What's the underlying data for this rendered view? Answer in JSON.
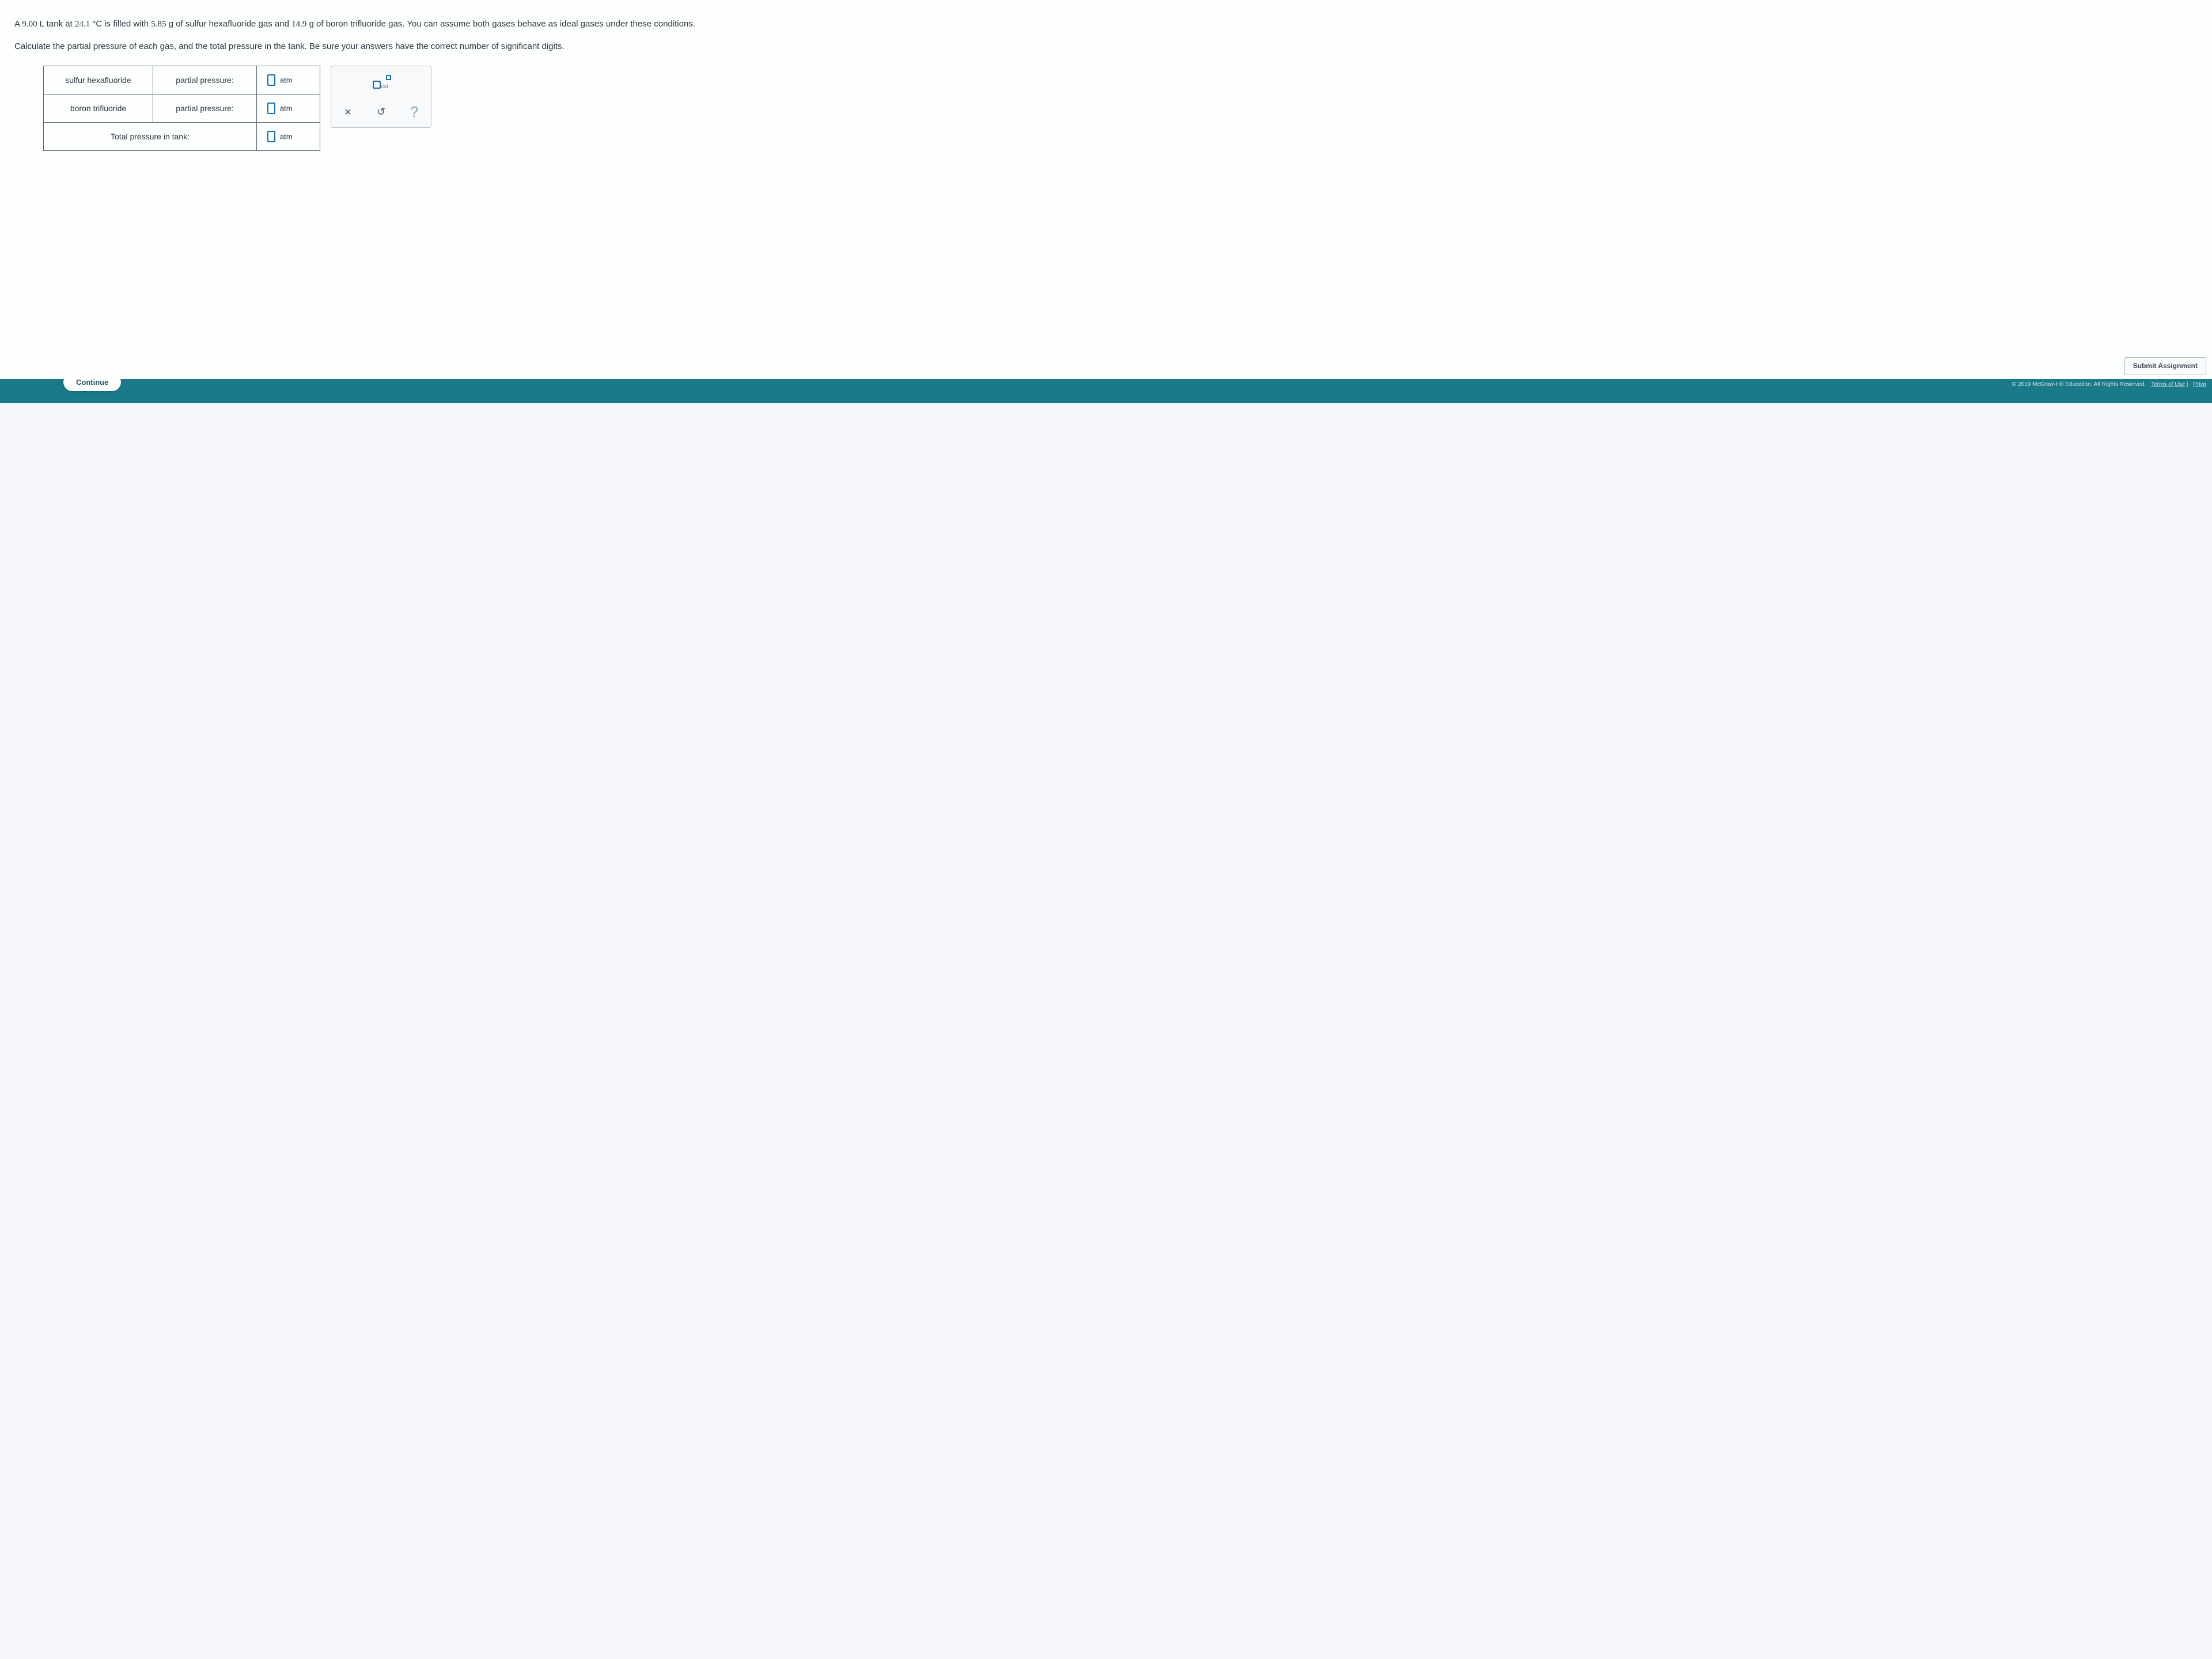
{
  "problem": {
    "text_parts": [
      "A ",
      "9.00",
      " L tank at ",
      "24.1",
      " °C is filled with ",
      "5.85",
      " g of sulfur hexafluoride gas and ",
      "14.9",
      " g of boron trifluoride gas. You can assume both gases behave as ideal gases under these conditions."
    ],
    "instruction": "Calculate the partial pressure of each gas, and the total pressure in the tank. Be sure your answers have the correct number of significant digits."
  },
  "table": {
    "rows": [
      {
        "gas": "sulfur hexafluoride",
        "label": "partial pressure:",
        "unit": "atm"
      },
      {
        "gas": "boron trifluoride",
        "label": "partial pressure:",
        "unit": "atm"
      }
    ],
    "total_label": "Total pressure in tank:",
    "total_unit": "atm"
  },
  "tools": {
    "sci_notation_x10": "x10",
    "clear": "✕",
    "reset": "↺",
    "help": "?"
  },
  "buttons": {
    "submit": "Submit Assignment",
    "continue": "Continue"
  },
  "footer": {
    "copyright": "© 2019 McGraw-Hill Education. All Rights Reserved.",
    "terms": "Terms of Use",
    "privacy": "Priva"
  },
  "colors": {
    "accent": "#1a6fb0",
    "teal": "#1a7a8a",
    "border": "#5a6570"
  }
}
